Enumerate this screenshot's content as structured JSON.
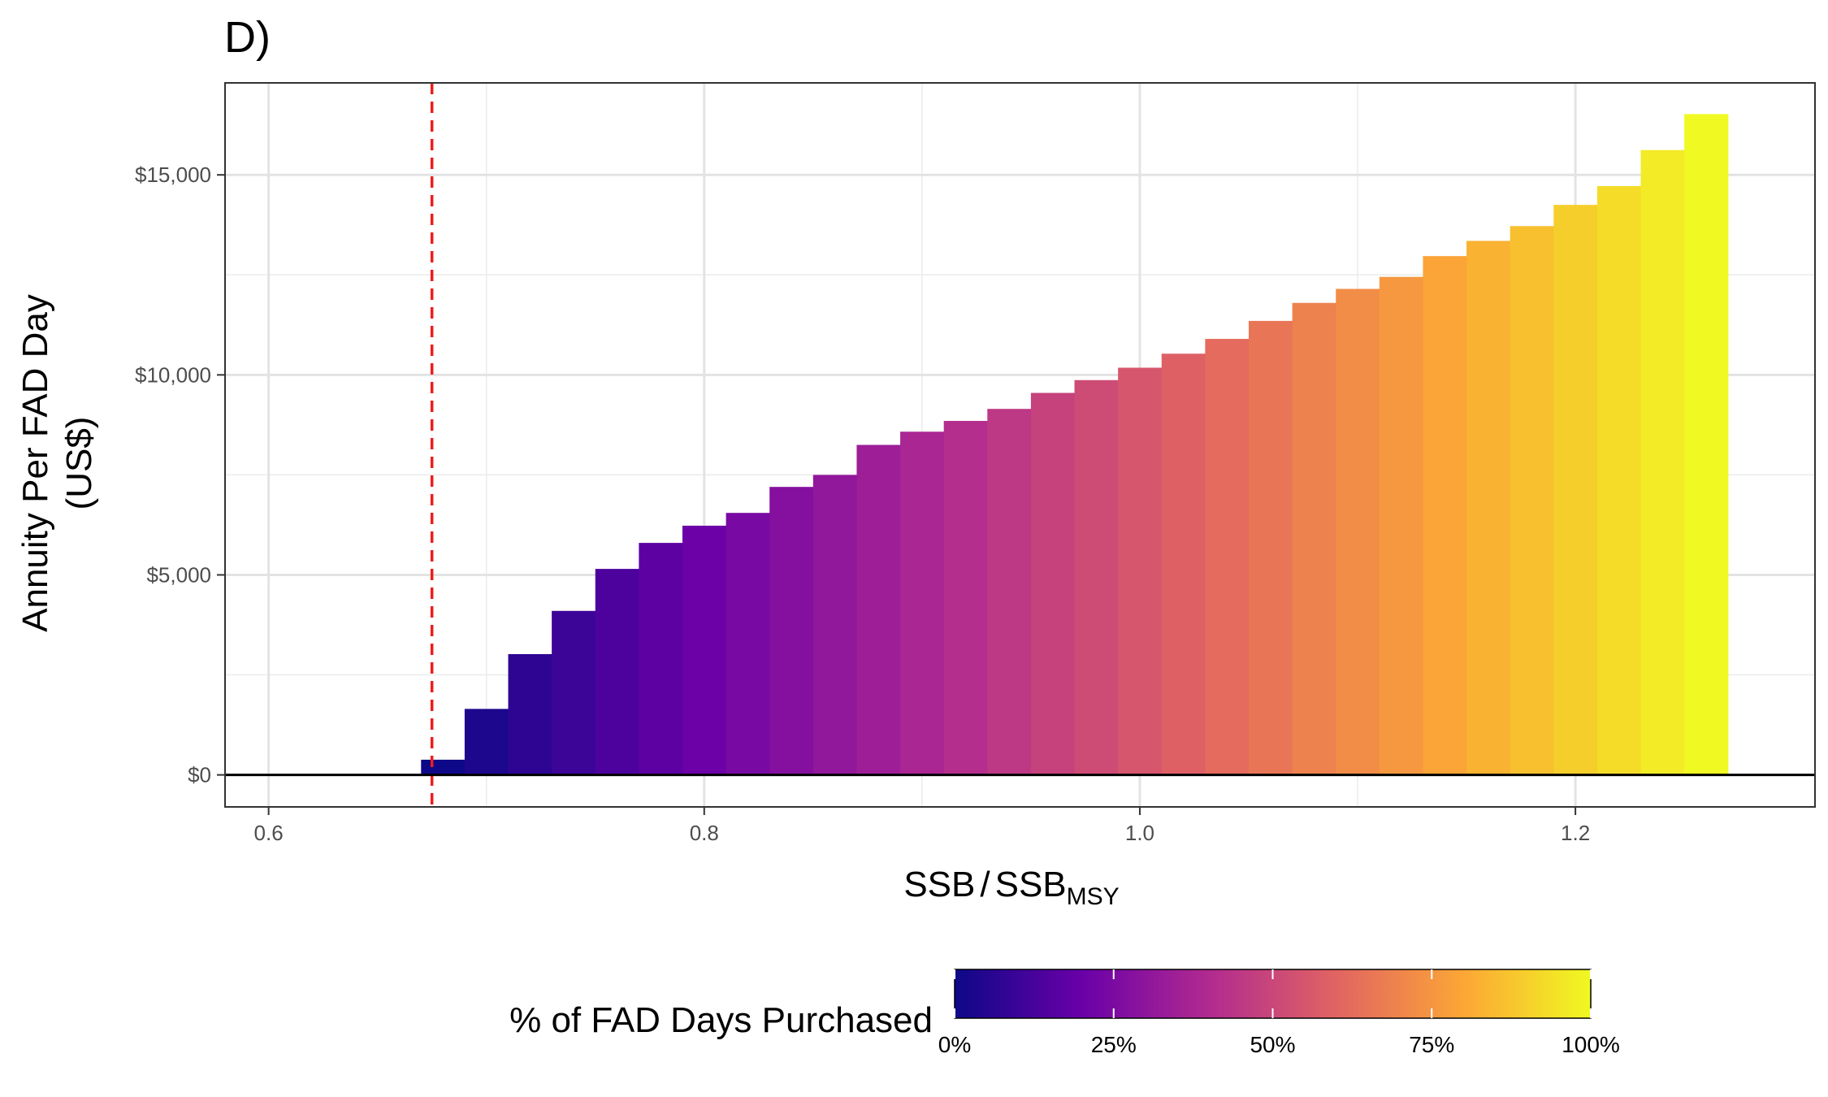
{
  "chart_data": {
    "type": "bar",
    "panel_label": "D)",
    "xlabel_main": "SSB",
    "xlabel_sep": "/",
    "xlabel_denom": "SSB",
    "xlabel_sub": "MSY",
    "ylabel_line1": "Annuity Per FAD Day",
    "ylabel_line2": "(US$)",
    "xlim": [
      0.58,
      1.31
    ],
    "ylim": [
      -800,
      17300
    ],
    "x_ticks": [
      0.6,
      0.8,
      1.0,
      1.2
    ],
    "x_tick_labels": [
      "0.6",
      "0.8",
      "1.0",
      "1.2"
    ],
    "y_ticks": [
      0,
      5000,
      10000,
      15000
    ],
    "y_tick_labels": [
      "$0",
      "$5,000",
      "$10,000",
      "$15,000"
    ],
    "bar_width": 0.02,
    "x": [
      0.68,
      0.7,
      0.72,
      0.74,
      0.76,
      0.78,
      0.8,
      0.82,
      0.84,
      0.86,
      0.88,
      0.9,
      0.92,
      0.94,
      0.96,
      0.98,
      1.0,
      1.02,
      1.04,
      1.06,
      1.08,
      1.1,
      1.12,
      1.14,
      1.16,
      1.18,
      1.2,
      1.22,
      1.24,
      1.26
    ],
    "values": [
      380,
      1650,
      3020,
      4100,
      5150,
      5800,
      6230,
      6550,
      7200,
      7500,
      8250,
      8580,
      8850,
      9150,
      9550,
      9870,
      10180,
      10530,
      10900,
      11350,
      11800,
      12150,
      12450,
      12970,
      13350,
      13720,
      14250,
      14720,
      15620,
      16520
    ],
    "pct_purchased": [
      0.0,
      0.034,
      0.069,
      0.103,
      0.138,
      0.172,
      0.207,
      0.241,
      0.276,
      0.31,
      0.345,
      0.379,
      0.414,
      0.448,
      0.483,
      0.517,
      0.552,
      0.586,
      0.621,
      0.655,
      0.69,
      0.724,
      0.759,
      0.793,
      0.828,
      0.862,
      0.897,
      0.931,
      0.966,
      1.0
    ],
    "reference_line_x": 0.675,
    "reference_line_color": "#ee1c1c",
    "grid": true,
    "legend": {
      "title": "% of FAD Days Purchased",
      "placement": "bottom",
      "tick_values": [
        0,
        0.25,
        0.5,
        0.75,
        1.0
      ],
      "tick_labels": [
        "0%",
        "25%",
        "50%",
        "75%",
        "100%"
      ],
      "colorscale": [
        "#0d0887",
        "#6a00a8",
        "#b12a90",
        "#e16462",
        "#fca636",
        "#f0f921"
      ]
    }
  }
}
